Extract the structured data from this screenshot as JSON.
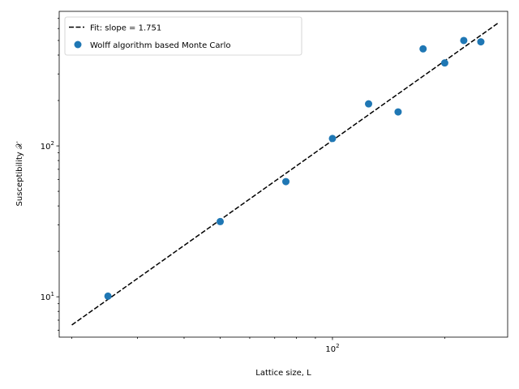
{
  "chart_data": {
    "type": "scatter",
    "xlabel": "Lattice size, L",
    "ylabel": "Susceptibility 𝒳",
    "xscale": "log",
    "yscale": "log",
    "xlim": [
      18.5,
      295
    ],
    "ylim": [
      5.4,
      780
    ],
    "grid": false,
    "legend_position": "top-left",
    "x_tick_labels": [
      {
        "value": 100,
        "label": "10",
        "exponent": "2"
      }
    ],
    "y_tick_labels": [
      {
        "value": 10,
        "label": "10",
        "exponent": "1"
      },
      {
        "value": 100,
        "label": "10",
        "exponent": "2"
      }
    ],
    "fit": {
      "name": "Fit: slope = 1.751",
      "slope": 1.751,
      "x_range": [
        20,
        280
      ],
      "y_range": [
        6.5,
        660
      ],
      "color": "#000000",
      "style": "dashed"
    },
    "series": [
      {
        "name": "Wolff algorithm based Monte Carlo",
        "color": "#1f77b4",
        "x": [
          25,
          50,
          75,
          100,
          125,
          150,
          175,
          200,
          225,
          250
        ],
        "y": [
          10.1,
          31.5,
          58,
          112,
          190,
          168,
          440,
          355,
          500,
          490
        ]
      }
    ]
  }
}
